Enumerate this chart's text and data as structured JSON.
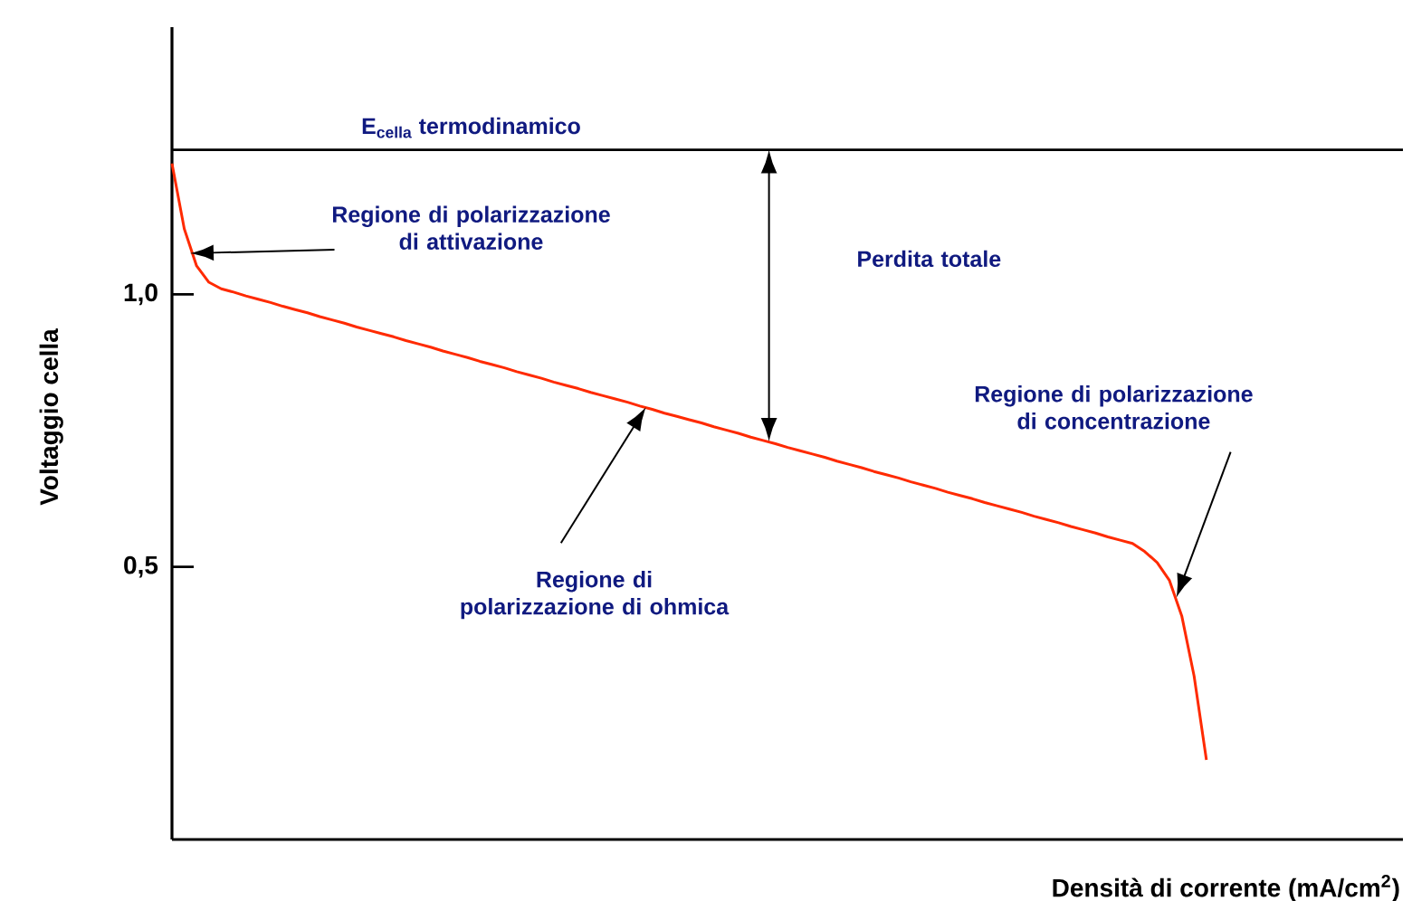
{
  "chart_data": {
    "type": "line",
    "xlabel": "Densità di corrente (mA/cm$^{2}$)",
    "ylabel": "Voltaggio cella",
    "categories": [
      null,
      null,
      null,
      null,
      null,
      null,
      null,
      null,
      null,
      null,
      null,
      null,
      null,
      null,
      null,
      null,
      null,
      null,
      null,
      null,
      null,
      null,
      null,
      null,
      null,
      null,
      null,
      null,
      null,
      null,
      null,
      null,
      null,
      null,
      null,
      null,
      null,
      null,
      null,
      null,
      null,
      null,
      null,
      null,
      null,
      null,
      null,
      null,
      null,
      null,
      null,
      null,
      null,
      null,
      null,
      null,
      null,
      null,
      null,
      null,
      null,
      null,
      null,
      null,
      null,
      null,
      null,
      null,
      null,
      null,
      null,
      null,
      null,
      null,
      null,
      null,
      null,
      null,
      null,
      null,
      null,
      null,
      null,
      null,
      null
    ],
    "series": [
      {
        "color": "#ff2a00",
        "values": [
          1.24,
          1.12,
          1.052,
          1.022,
          1.01,
          1.004,
          0.997,
          0.991,
          0.985,
          0.978,
          0.972,
          0.966,
          0.959,
          0.953,
          0.947,
          0.94,
          0.934,
          0.928,
          0.922,
          0.915,
          0.909,
          0.903,
          0.896,
          0.89,
          0.884,
          0.877,
          0.871,
          0.865,
          0.858,
          0.852,
          0.846,
          0.839,
          0.833,
          0.827,
          0.82,
          0.814,
          0.808,
          0.802,
          0.795,
          0.789,
          0.782,
          0.776,
          0.77,
          0.764,
          0.757,
          0.751,
          0.745,
          0.738,
          0.732,
          0.726,
          0.719,
          0.713,
          0.707,
          0.701,
          0.694,
          0.688,
          0.682,
          0.675,
          0.669,
          0.663,
          0.656,
          0.65,
          0.644,
          0.637,
          0.631,
          0.625,
          0.618,
          0.612,
          0.606,
          0.6,
          0.593,
          0.587,
          0.581,
          0.574,
          0.568,
          0.562,
          0.555,
          0.549,
          0.543,
          0.528,
          0.508,
          0.475,
          0.41,
          0.3,
          0.146
        ]
      }
    ],
    "ylim": [
      0,
      1.49
    ],
    "yticks": [
      {
        "value": 0.5,
        "label": "0,5"
      },
      {
        "value": 1.0,
        "label": "1,0"
      }
    ],
    "ref_lines": [
      {
        "axis": "y",
        "value": 1.265,
        "label": "E$_{cella}$ termodinamico",
        "color": "#000000"
      }
    ],
    "annotations": [
      "Regione di polarizzazione di attivazione",
      "Perdita totale",
      "Regione di polarizzazione di ohmica",
      "Regione di polarizzazione di concentrazione"
    ]
  }
}
